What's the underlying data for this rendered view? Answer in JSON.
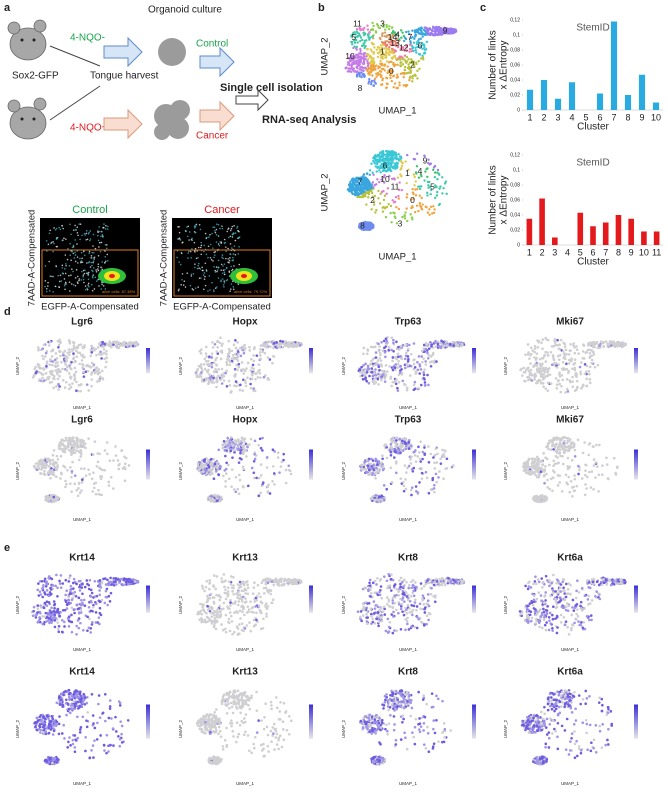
{
  "panel_labels": [
    "a",
    "b",
    "c",
    "d",
    "e"
  ],
  "schematic": {
    "mouse_label": "Sox2-GFP",
    "treat_control": "4-NQO-",
    "treat_cancer": "4-NQO+",
    "harvest": "Tongue harvest",
    "culture": "Organoid culture",
    "control": "Control",
    "cancer": "Cancer",
    "isolation": "Single cell isolation",
    "analysis": "RNA-seq Analysis"
  },
  "flow": {
    "panels": [
      {
        "title": "Control",
        "gate": "alive cells: 87.38%"
      },
      {
        "title": "Cancer",
        "gate": "alive cells: 79.72%"
      }
    ],
    "y_label": "7AAD-A-Compensated",
    "x_label": "EGFP-A-Compensated"
  },
  "umap": {
    "x_label": "UMAP_1",
    "y_label": "UMAP_2",
    "control_clusters": [
      "0",
      "1",
      "2",
      "3",
      "4",
      "5",
      "6",
      "7",
      "8",
      "9",
      "10",
      "11",
      "12",
      "13",
      "14"
    ],
    "cancer_clusters": [
      "0",
      "1",
      "2",
      "3",
      "4",
      "5",
      "6",
      "7",
      "8",
      "9",
      "10",
      "11"
    ]
  },
  "chart_data": [
    {
      "type": "bar",
      "title": "StemID",
      "y_label": [
        "Number of links",
        "x  ΔEntropy"
      ],
      "x_label": "Cluster",
      "color": "#29abe2",
      "categories": [
        "1",
        "2",
        "3",
        "4",
        "5",
        "6",
        "7",
        "8",
        "9",
        "10"
      ],
      "values": [
        0.027,
        0.04,
        0.015,
        0.037,
        0,
        0.022,
        0.118,
        0.02,
        0.047,
        0.01
      ],
      "ylim": [
        0,
        0.12
      ],
      "yticks": [
        0,
        {
          "value": 0.02,
          "label": "0,02"
        },
        {
          "value": 0.04,
          "label": "0,04"
        },
        {
          "value": 0.06,
          "label": "0,06"
        },
        {
          "value": 0.08,
          "label": "0,08"
        },
        {
          "value": 0.1,
          "label": "0,1"
        },
        {
          "value": 0.12,
          "label": "0,12"
        }
      ]
    },
    {
      "type": "bar",
      "title": "StemID",
      "y_label": [
        "Number of links",
        "x  ΔEntropy"
      ],
      "x_label": "Cluster",
      "color": "#e3191c",
      "categories": [
        "1",
        "2",
        "3",
        "4",
        "5",
        "6",
        "7",
        "8",
        "9",
        "10",
        "11"
      ],
      "values": [
        0.035,
        0.062,
        0.01,
        0,
        0.043,
        0.025,
        0.03,
        0.04,
        0.035,
        0.018,
        0.018
      ],
      "ylim": [
        0,
        0.12
      ],
      "yticks": [
        0,
        {
          "value": 0.02,
          "label": "0,02"
        },
        {
          "value": 0.04,
          "label": "0,04"
        },
        {
          "value": 0.06,
          "label": "0,06"
        },
        {
          "value": 0.08,
          "label": "0,08"
        },
        {
          "value": 0.1,
          "label": "0,1"
        },
        {
          "value": 0.12,
          "label": "0,12"
        }
      ]
    }
  ],
  "feature_plots": {
    "x_label": "UMAP_1",
    "y_label": "UMAP_2",
    "d_genes": [
      "Lgr6",
      "Hopx",
      "Trp63",
      "Mki67"
    ],
    "e_genes": [
      "Krt14",
      "Krt13",
      "Krt8",
      "Krt6a"
    ]
  }
}
